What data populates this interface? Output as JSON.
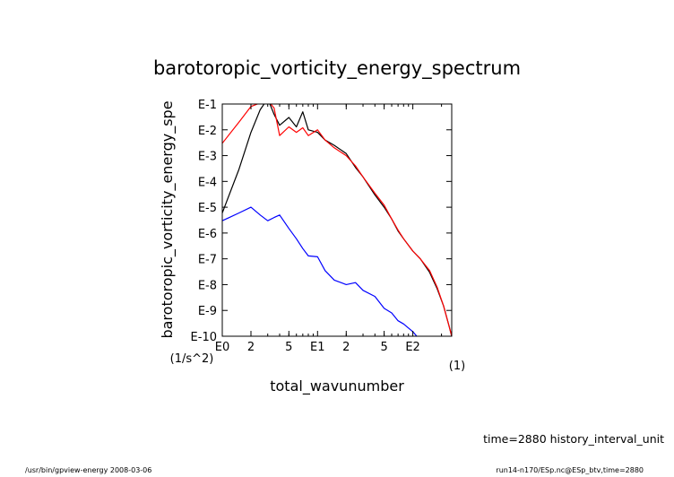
{
  "chart_data": {
    "type": "line",
    "title": "barotoropic_vorticity_energy_spectrum",
    "xlabel": "total_wavunumber",
    "xunit": "(1)",
    "ylabel": "barotoropic_vorticity_energy_spe",
    "yunit": "(1/s^2)",
    "xscale": "log",
    "yscale": "log",
    "xlim": [
      1,
      256
    ],
    "ylim": [
      1e-10,
      0.1
    ],
    "x_ticks": [
      {
        "v": 1,
        "label": "E0"
      },
      {
        "v": 2,
        "label": "2"
      },
      {
        "v": 5,
        "label": "5"
      },
      {
        "v": 10,
        "label": "E1"
      },
      {
        "v": 20,
        "label": "2"
      },
      {
        "v": 50,
        "label": "5"
      },
      {
        "v": 100,
        "label": "E2"
      }
    ],
    "y_ticks": [
      {
        "v": 0.1,
        "label": "E-1"
      },
      {
        "v": 0.01,
        "label": "E-2"
      },
      {
        "v": 0.001,
        "label": "E-3"
      },
      {
        "v": 0.0001,
        "label": "E-4"
      },
      {
        "v": 1e-05,
        "label": "E-5"
      },
      {
        "v": 1e-06,
        "label": "E-6"
      },
      {
        "v": 1e-07,
        "label": "E-7"
      },
      {
        "v": 1e-08,
        "label": "E-8"
      },
      {
        "v": 1e-09,
        "label": "E-9"
      },
      {
        "v": 1e-10,
        "label": "E-10"
      }
    ],
    "grid": false,
    "series": [
      {
        "color": "#000000",
        "points": [
          [
            1,
            6e-06
          ],
          [
            1.5,
            0.0003
          ],
          [
            2,
            0.008
          ],
          [
            2.5,
            0.06
          ],
          [
            3,
            0.16
          ],
          [
            3.5,
            0.04
          ],
          [
            4,
            0.015
          ],
          [
            5,
            0.03
          ],
          [
            6,
            0.013
          ],
          [
            7,
            0.05
          ],
          [
            8,
            0.01
          ],
          [
            10,
            0.008
          ],
          [
            12,
            0.004
          ],
          [
            15,
            0.0025
          ],
          [
            20,
            0.0012
          ],
          [
            25,
            0.00035
          ],
          [
            30,
            0.00015
          ],
          [
            40,
            3e-05
          ],
          [
            50,
            1e-05
          ],
          [
            60,
            3.5e-06
          ],
          [
            70,
            1.2e-06
          ],
          [
            80,
            6e-07
          ],
          [
            100,
            2e-07
          ],
          [
            120,
            1e-07
          ],
          [
            150,
            3e-08
          ],
          [
            180,
            7e-09
          ],
          [
            210,
            1.5e-09
          ],
          [
            240,
            2.5e-10
          ],
          [
            256,
            1e-10
          ]
        ]
      },
      {
        "color": "#ff0000",
        "points": [
          [
            1,
            0.003
          ],
          [
            1.5,
            0.02
          ],
          [
            2,
            0.08
          ],
          [
            2.5,
            0.11
          ],
          [
            3,
            0.14
          ],
          [
            3.5,
            0.07
          ],
          [
            4,
            0.006
          ],
          [
            5,
            0.013
          ],
          [
            6,
            0.008
          ],
          [
            7,
            0.012
          ],
          [
            8,
            0.006
          ],
          [
            10,
            0.01
          ],
          [
            12,
            0.004
          ],
          [
            15,
            0.002
          ],
          [
            20,
            0.001
          ],
          [
            25,
            0.0004
          ],
          [
            30,
            0.00015
          ],
          [
            40,
            3.5e-05
          ],
          [
            50,
            1.2e-05
          ],
          [
            60,
            3.5e-06
          ],
          [
            70,
            1.3e-06
          ],
          [
            80,
            6e-07
          ],
          [
            100,
            2e-07
          ],
          [
            120,
            1e-07
          ],
          [
            150,
            3.5e-08
          ],
          [
            180,
            8e-09
          ],
          [
            210,
            1.5e-09
          ],
          [
            240,
            2.5e-10
          ],
          [
            256,
            1e-10
          ]
        ]
      },
      {
        "color": "#0000ff",
        "points": [
          [
            1,
            3e-06
          ],
          [
            1.5,
            6e-06
          ],
          [
            2,
            1e-05
          ],
          [
            2.5,
            5e-06
          ],
          [
            3,
            3e-06
          ],
          [
            3.5,
            4e-06
          ],
          [
            4,
            5e-06
          ],
          [
            5,
            1.5e-06
          ],
          [
            6,
            6e-07
          ],
          [
            7,
            2.5e-07
          ],
          [
            8,
            1.3e-07
          ],
          [
            10,
            1.2e-07
          ],
          [
            12,
            3.5e-08
          ],
          [
            15,
            1.5e-08
          ],
          [
            20,
            1e-08
          ],
          [
            25,
            1.2e-08
          ],
          [
            30,
            6e-09
          ],
          [
            40,
            3.5e-09
          ],
          [
            50,
            1.2e-09
          ],
          [
            60,
            8e-10
          ],
          [
            70,
            4e-10
          ],
          [
            80,
            3e-10
          ],
          [
            100,
            1.5e-10
          ],
          [
            110,
            1e-10
          ]
        ]
      }
    ]
  },
  "footer": {
    "time_label": "time=2880 history_interval_unit",
    "left_note": "/usr/bin/gpview-energy  2008-03-06",
    "right_note": "run14-n170/ESp.nc@ESp_btv,time=2880"
  }
}
